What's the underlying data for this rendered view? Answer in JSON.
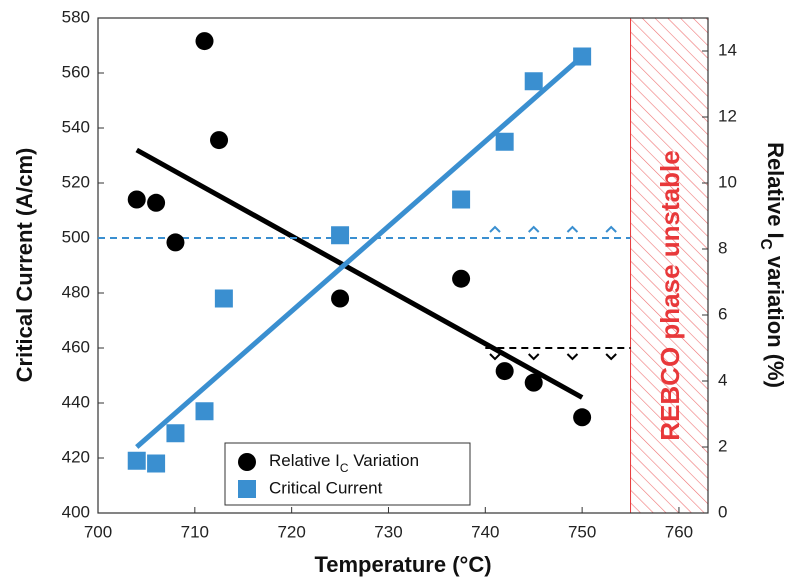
{
  "chart_data": {
    "type": "scatter",
    "xlabel": "Temperature (°C)",
    "ylabel": "Critical Current (A/cm)",
    "y2label": "Relative IC variation (%)",
    "xlim": [
      700,
      763
    ],
    "xticks": [
      700,
      710,
      720,
      730,
      740,
      750,
      760
    ],
    "ylim": [
      400,
      580
    ],
    "yticks": [
      400,
      420,
      440,
      460,
      480,
      500,
      520,
      540,
      560,
      580
    ],
    "y2lim": [
      0,
      15
    ],
    "y2ticks": [
      0,
      2,
      4,
      6,
      8,
      10,
      12,
      14
    ],
    "series": [
      {
        "name": "Relative IC Variation",
        "color": "#000000",
        "marker": "circle",
        "axis": "y2",
        "x": [
          704,
          706,
          708,
          711,
          712.5,
          725,
          737.5,
          742,
          745,
          750
        ],
        "values": [
          9.5,
          9.4,
          8.2,
          14.3,
          11.3,
          6.5,
          7.1,
          4.3,
          3.95,
          2.9
        ],
        "fit": {
          "x": [
            704,
            750
          ],
          "values": [
            11.0,
            3.5
          ]
        },
        "threshold": {
          "value": 5,
          "x": [
            740,
            755
          ],
          "arrow_x": [
            741,
            745,
            749,
            753
          ],
          "direction": "down"
        }
      },
      {
        "name": "Critical Current",
        "color": "#3a8fd0",
        "marker": "square",
        "x": [
          704,
          706,
          708,
          711,
          713,
          725,
          737.5,
          742,
          745,
          750
        ],
        "values": [
          419,
          418,
          429,
          437,
          478,
          501,
          514,
          535,
          557,
          566
        ],
        "fit": {
          "x": [
            704,
            750
          ],
          "values": [
            424,
            566
          ]
        },
        "threshold": {
          "value": 500,
          "x": [
            700,
            755
          ],
          "arrow_x": [
            741,
            745,
            749,
            753
          ],
          "direction": "up"
        }
      }
    ],
    "shaded_region": {
      "from": 755,
      "label": "REBCO phase unstable",
      "color": "#e8383a"
    }
  }
}
